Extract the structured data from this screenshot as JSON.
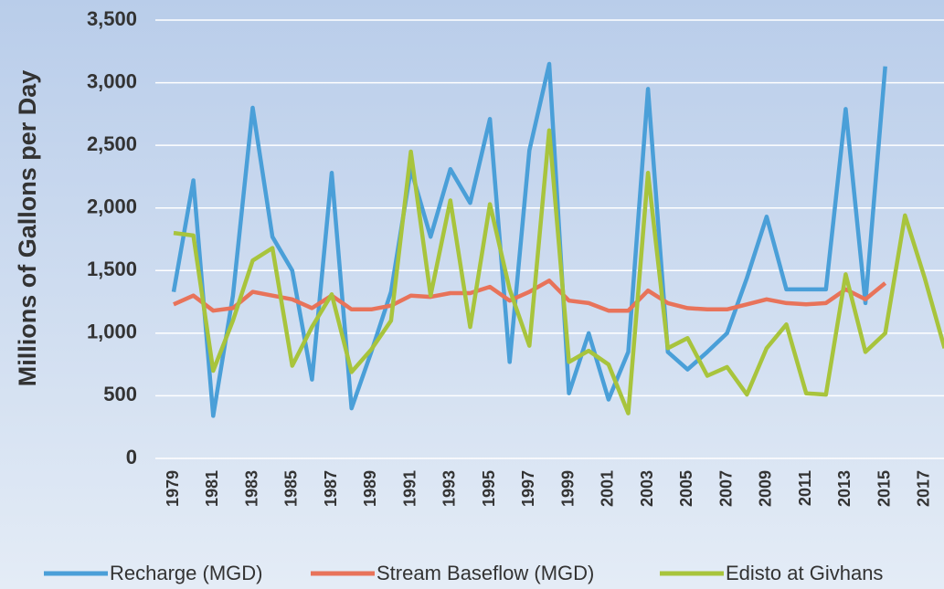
{
  "chart_data": {
    "type": "line",
    "ylabel": "Millions of Gallons per Day",
    "categories": [
      "1979",
      null,
      "1981",
      null,
      "1983",
      null,
      "1985",
      null,
      "1987",
      null,
      "1989",
      null,
      "1991",
      null,
      "1993",
      null,
      "1995",
      null,
      "1997",
      null,
      "1999",
      null,
      "2001",
      null,
      "2003",
      null,
      "2005",
      null,
      "2007",
      null,
      "2009",
      null,
      "2011",
      null,
      "2013",
      null,
      "2015",
      null,
      "2017",
      null
    ],
    "series": [
      {
        "name": "Recharge (MGD)",
        "color": "#4a9fd8",
        "values": [
          1330,
          2220,
          340,
          1300,
          2800,
          1770,
          1500,
          630,
          2280,
          400,
          850,
          1330,
          2310,
          1770,
          2310,
          2040,
          2710,
          770,
          2460,
          3150,
          520,
          1000,
          470,
          850,
          2950,
          850,
          710,
          850,
          1000,
          1440,
          1930,
          1350,
          1350,
          1350,
          2790,
          1240,
          3130,
          null,
          null,
          null
        ]
      },
      {
        "name": "Stream Baseflow (MGD)",
        "color": "#e8735a",
        "values": [
          1230,
          1300,
          1180,
          1200,
          1330,
          1300,
          1270,
          1200,
          1300,
          1190,
          1190,
          1220,
          1300,
          1290,
          1320,
          1320,
          1370,
          1260,
          1330,
          1420,
          1260,
          1240,
          1180,
          1180,
          1340,
          1240,
          1200,
          1190,
          1190,
          1230,
          1270,
          1240,
          1230,
          1240,
          1350,
          1270,
          1400,
          null,
          null,
          null
        ]
      },
      {
        "name": "Edisto at Givhans",
        "color": "#a8c43c",
        "values": [
          1800,
          1780,
          700,
          1100,
          1580,
          1680,
          740,
          1050,
          1310,
          690,
          870,
          1100,
          2450,
          1300,
          2060,
          1050,
          2030,
          1350,
          900,
          2620,
          770,
          860,
          750,
          360,
          2280,
          880,
          960,
          660,
          730,
          510,
          880,
          1070,
          520,
          510,
          1470,
          850,
          1000,
          1940,
          1440,
          880
        ]
      }
    ],
    "ylim": [
      0,
      3500
    ],
    "yticks": [
      0,
      500,
      {
        "value": 1000,
        "label": "1,000"
      },
      {
        "value": 1500,
        "label": "1,500"
      },
      {
        "value": 2000,
        "label": "2,000"
      },
      {
        "value": 2500,
        "label": "2,500"
      },
      {
        "value": 3000,
        "label": "3,000"
      },
      {
        "value": 3500,
        "label": "3,500"
      }
    ],
    "grid": true,
    "legend": "bottom"
  }
}
